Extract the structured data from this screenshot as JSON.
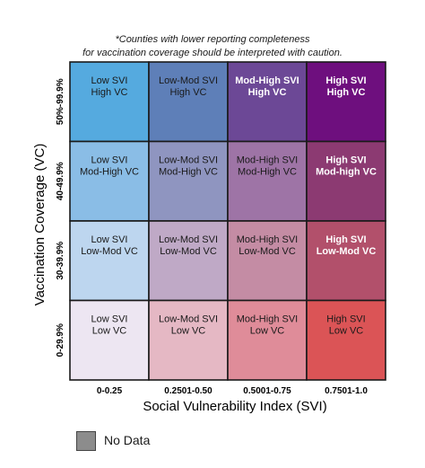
{
  "notes": {
    "line1": "*Counties with lower reporting completeness",
    "line2": "for vaccination coverage should be interpreted with caution."
  },
  "chart_data": {
    "type": "heatmap",
    "xlabel": "Social Vulnerability Index (SVI)",
    "ylabel": "Vaccination Coverage (VC)",
    "x_categories": [
      "0-0.25",
      "0.2501-0.50",
      "0.5001-0.75",
      "0.7501-1.0"
    ],
    "y_categories": [
      "50%-99.9%",
      "40-49.9%",
      "30-39.9%",
      "0-29.9%"
    ],
    "cells": [
      [
        {
          "line1": "Low SVI",
          "line2": "High VC",
          "color": "#55aadf",
          "text": "dark",
          "bold": false
        },
        {
          "line1": "Low-Mod SVI",
          "line2": "High VC",
          "color": "#5e7fb8",
          "text": "dark",
          "bold": false
        },
        {
          "line1": "Mod-High SVI",
          "line2": "High VC",
          "color": "#6c4896",
          "text": "light",
          "bold": true
        },
        {
          "line1": "High SVI",
          "line2": "High VC",
          "color": "#6e0f7e",
          "text": "light",
          "bold": true
        }
      ],
      [
        {
          "line1": "Low SVI",
          "line2": "Mod-High VC",
          "color": "#8abde6",
          "text": "dark",
          "bold": false
        },
        {
          "line1": "Low-Mod SVI",
          "line2": "Mod-High VC",
          "color": "#8f95c0",
          "text": "dark",
          "bold": false
        },
        {
          "line1": "Mod-High SVI",
          "line2": "Mod-High VC",
          "color": "#9e74a6",
          "text": "dark",
          "bold": false
        },
        {
          "line1": "High SVI",
          "line2": "Mod-high VC",
          "color": "#8c3a72",
          "text": "light",
          "bold": true
        }
      ],
      [
        {
          "line1": "Low SVI",
          "line2": "Low-Mod VC",
          "color": "#bdd6ef",
          "text": "dark",
          "bold": false
        },
        {
          "line1": "Low-Mod SVI",
          "line2": "Low-Mod VC",
          "color": "#bfa9c6",
          "text": "dark",
          "bold": false
        },
        {
          "line1": "Mod-High SVI",
          "line2": "Low-Mod VC",
          "color": "#c48ca4",
          "text": "dark",
          "bold": false
        },
        {
          "line1": "High SVI",
          "line2": "Low-Mod VC",
          "color": "#b2506b",
          "text": "light",
          "bold": true
        }
      ],
      [
        {
          "line1": "Low SVI",
          "line2": "Low VC",
          "color": "#ede6f2",
          "text": "dark",
          "bold": false
        },
        {
          "line1": "Low-Mod SVI",
          "line2": "Low VC",
          "color": "#e5b8c4",
          "text": "dark",
          "bold": false
        },
        {
          "line1": "Mod-High SVI",
          "line2": "Low VC",
          "color": "#df8c99",
          "text": "dark",
          "bold": false
        },
        {
          "line1": "High SVI",
          "line2": "Low VC",
          "color": "#db5456",
          "text": "dark",
          "bold": false
        }
      ]
    ],
    "legend": [
      {
        "label": "No Data",
        "color": "#8c8c8c"
      }
    ]
  }
}
